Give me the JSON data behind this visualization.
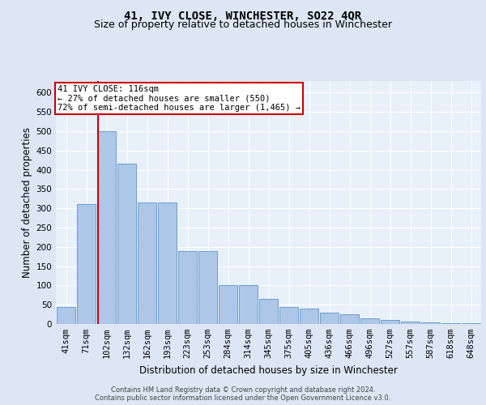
{
  "title": "41, IVY CLOSE, WINCHESTER, SO22 4QR",
  "subtitle": "Size of property relative to detached houses in Winchester",
  "xlabel": "Distribution of detached houses by size in Winchester",
  "ylabel": "Number of detached properties",
  "bar_labels": [
    "41sqm",
    "71sqm",
    "102sqm",
    "132sqm",
    "162sqm",
    "193sqm",
    "223sqm",
    "253sqm",
    "284sqm",
    "314sqm",
    "345sqm",
    "375sqm",
    "405sqm",
    "436sqm",
    "466sqm",
    "496sqm",
    "527sqm",
    "557sqm",
    "587sqm",
    "618sqm",
    "648sqm"
  ],
  "bar_values": [
    45,
    310,
    500,
    415,
    315,
    315,
    190,
    190,
    100,
    100,
    65,
    45,
    40,
    30,
    25,
    15,
    10,
    6,
    5,
    3,
    2
  ],
  "bar_color": "#aec6e8",
  "bar_edge_color": "#5a96c8",
  "vline_x_index": 2,
  "vline_color": "#cc0000",
  "annotation_line1": "41 IVY CLOSE: 116sqm",
  "annotation_line2": "← 27% of detached houses are smaller (550)",
  "annotation_line3": "72% of semi-detached houses are larger (1,465) →",
  "annotation_box_edgecolor": "#cc0000",
  "ylim": [
    0,
    630
  ],
  "yticks": [
    0,
    50,
    100,
    150,
    200,
    250,
    300,
    350,
    400,
    450,
    500,
    550,
    600
  ],
  "bg_color": "#dce6f5",
  "plot_bg_color": "#e8f0fa",
  "grid_color": "#ffffff",
  "footer": "Contains HM Land Registry data © Crown copyright and database right 2024.\nContains public sector information licensed under the Open Government Licence v3.0.",
  "title_fontsize": 10,
  "subtitle_fontsize": 9,
  "xlabel_fontsize": 8.5,
  "ylabel_fontsize": 8.5,
  "tick_fontsize": 7.5,
  "annotation_fontsize": 7.5,
  "footer_fontsize": 6
}
